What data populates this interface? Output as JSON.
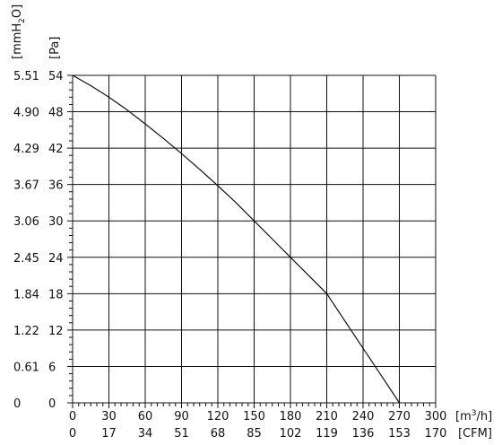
{
  "chart_data": {
    "type": "line",
    "title": "",
    "x_primary": {
      "unit_prefix": "[m",
      "unit_sup": "3",
      "unit_suffix": "/h]",
      "ticks": [
        "0",
        "30",
        "60",
        "90",
        "120",
        "150",
        "180",
        "210",
        "240",
        "270",
        "300"
      ],
      "range": [
        0,
        300
      ]
    },
    "x_secondary": {
      "unit": "[CFM]",
      "ticks": [
        "0",
        "17",
        "34",
        "51",
        "68",
        "85",
        "102",
        "119",
        "136",
        "153",
        "170"
      ]
    },
    "y_primary": {
      "unit": "[Pa]",
      "ticks": [
        "0",
        "6",
        "12",
        "18",
        "24",
        "30",
        "36",
        "42",
        "48",
        "54"
      ],
      "range": [
        0,
        54
      ]
    },
    "y_secondary": {
      "unit_prefix": "[mmH",
      "unit_sub": "2",
      "unit_suffix": "O]",
      "ticks": [
        "0",
        "0.61",
        "1.22",
        "1.84",
        "2.45",
        "3.06",
        "3.67",
        "4.29",
        "4.90",
        "5.51"
      ]
    },
    "grid": true,
    "series": [
      {
        "x": [
          0,
          15,
          30,
          45,
          60,
          75,
          90,
          105,
          120,
          135,
          150,
          165,
          180,
          195,
          210,
          225,
          240,
          255,
          270
        ],
        "y": [
          54,
          52.3,
          50.4,
          48.3,
          46.0,
          43.6,
          41.1,
          38.5,
          35.8,
          33.0,
          30.0,
          27.0,
          24.0,
          21.0,
          18.0,
          13.5,
          9.0,
          4.5,
          0
        ]
      }
    ]
  }
}
